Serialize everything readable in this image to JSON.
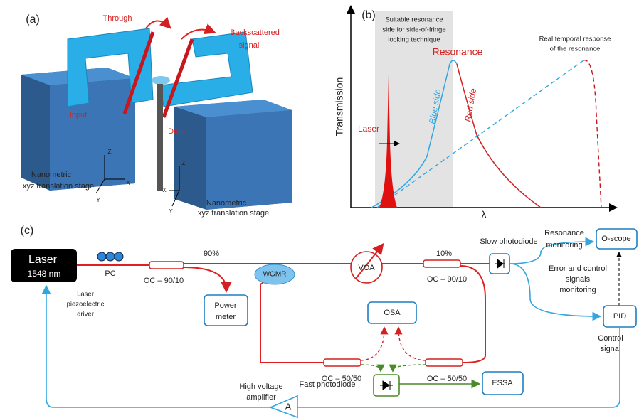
{
  "panel_a": {
    "label": "(a)",
    "through": "Through",
    "backscattered": [
      "Backscattered",
      "signal"
    ],
    "input": "Input",
    "drop": "Drop",
    "stage_left": [
      "Nanometric",
      "xyz translation stage"
    ],
    "stage_right": [
      "Nanometric",
      "xyz translation stage"
    ],
    "axes_left": {
      "z": "Z",
      "x": "X",
      "y": "Y"
    },
    "axes_right": {
      "z": "Z",
      "x": "X",
      "y": "Y"
    }
  },
  "panel_b": {
    "label": "(b)",
    "band_note": [
      "Suitable resonance",
      "side for side-of-fringe",
      "locking technique"
    ],
    "resonance": "Resonance",
    "real_response": [
      "Real temporal response",
      "of the resonance"
    ],
    "y_label": "Transmission",
    "blue_side": "Blue side",
    "red_side": "Red side",
    "laser": "Laser",
    "x_label": "λ"
  },
  "panel_c": {
    "label": "(c)",
    "laser": [
      "Laser",
      "1548 nm"
    ],
    "pc": "PC",
    "oc_in": "OC – 90/10",
    "pct_90": "90%",
    "pct_10": "10%",
    "wgmr": "WGMR",
    "voa": "VOA",
    "oc_out": "OC – 90/10",
    "slow_pd": "Slow photodiode",
    "res_mon": [
      "Resonance",
      "monitoring"
    ],
    "oscope": "O-scope",
    "err_mon": [
      "Error and control",
      "signals",
      "monitoring"
    ],
    "pid": "PID",
    "control": [
      "Control",
      "signal"
    ],
    "power_meter": [
      "Power",
      "meter"
    ],
    "osa": "OSA",
    "oc_left": "OC – 50/50",
    "oc_right": "OC – 50/50",
    "fast_pd": "Fast photodiode",
    "essa": "ESSA",
    "hv_amp": [
      "High voltage",
      "amplifier"
    ],
    "amp": "A",
    "driver": [
      "Laser",
      "piezoelectric",
      "driver"
    ]
  }
}
